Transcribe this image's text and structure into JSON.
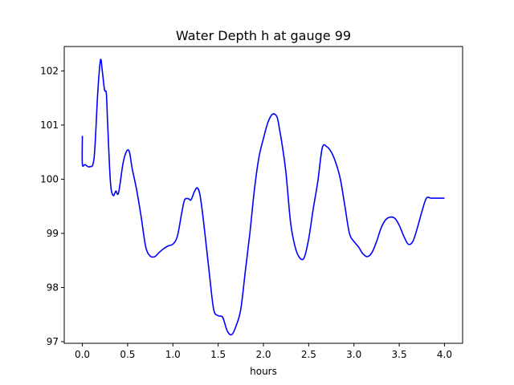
{
  "chart_data": {
    "type": "line",
    "title": "Water Depth h at gauge 99",
    "xlabel": "hours",
    "ylabel": "",
    "xlim": [
      -0.2,
      4.2
    ],
    "ylim": [
      96.97,
      102.45
    ],
    "xticks": [
      0.0,
      0.5,
      1.0,
      1.5,
      2.0,
      2.5,
      3.0,
      3.5,
      4.0
    ],
    "xtick_labels": [
      "0.0",
      "0.5",
      "1.0",
      "1.5",
      "2.0",
      "2.5",
      "3.0",
      "3.5",
      "4.0"
    ],
    "yticks": [
      97,
      98,
      99,
      100,
      101,
      102
    ],
    "ytick_labels": [
      "97",
      "98",
      "99",
      "100",
      "101",
      "102"
    ],
    "grid": false,
    "line_color": "#0000ff",
    "series": [
      {
        "x": [
          0.0,
          0.0,
          0.03,
          0.08,
          0.13,
          0.17,
          0.2,
          0.22,
          0.245,
          0.265,
          0.28,
          0.31,
          0.34,
          0.37,
          0.4,
          0.45,
          0.49,
          0.52,
          0.55,
          0.6,
          0.65,
          0.7,
          0.75,
          0.8,
          0.85,
          0.9,
          0.95,
          1.0,
          1.05,
          1.1,
          1.13,
          1.17,
          1.2,
          1.24,
          1.27,
          1.3,
          1.34,
          1.4,
          1.45,
          1.5,
          1.55,
          1.6,
          1.65,
          1.7,
          1.75,
          1.8,
          1.85,
          1.9,
          1.95,
          2.0,
          2.05,
          2.1,
          2.15,
          2.18,
          2.21,
          2.25,
          2.3,
          2.35,
          2.4,
          2.45,
          2.5,
          2.55,
          2.6,
          2.65,
          2.7,
          2.75,
          2.8,
          2.85,
          2.9,
          2.95,
          3.0,
          3.05,
          3.1,
          3.15,
          3.2,
          3.25,
          3.3,
          3.35,
          3.4,
          3.45,
          3.5,
          3.55,
          3.6,
          3.65,
          3.7,
          3.75,
          3.8,
          3.85,
          3.9,
          3.95,
          4.0
        ],
        "y": [
          100.8,
          100.28,
          100.27,
          100.23,
          100.4,
          101.6,
          102.2,
          102.0,
          101.65,
          101.58,
          101.0,
          99.95,
          99.7,
          99.78,
          99.75,
          100.3,
          100.52,
          100.5,
          100.2,
          99.8,
          99.3,
          98.75,
          98.58,
          98.57,
          98.65,
          98.72,
          98.77,
          98.8,
          98.95,
          99.4,
          99.62,
          99.64,
          99.62,
          99.78,
          99.84,
          99.7,
          99.2,
          98.3,
          97.6,
          97.48,
          97.45,
          97.2,
          97.13,
          97.3,
          97.6,
          98.3,
          99.0,
          99.8,
          100.4,
          100.75,
          101.05,
          101.2,
          101.15,
          100.9,
          100.6,
          100.1,
          99.2,
          98.75,
          98.55,
          98.55,
          98.9,
          99.45,
          99.95,
          100.58,
          100.6,
          100.5,
          100.3,
          100.0,
          99.5,
          99.0,
          98.85,
          98.75,
          98.62,
          98.57,
          98.65,
          98.85,
          99.1,
          99.25,
          99.3,
          99.28,
          99.15,
          98.95,
          98.8,
          98.85,
          99.1,
          99.4,
          99.65,
          99.65,
          99.65,
          99.65,
          99.65
        ]
      }
    ]
  }
}
